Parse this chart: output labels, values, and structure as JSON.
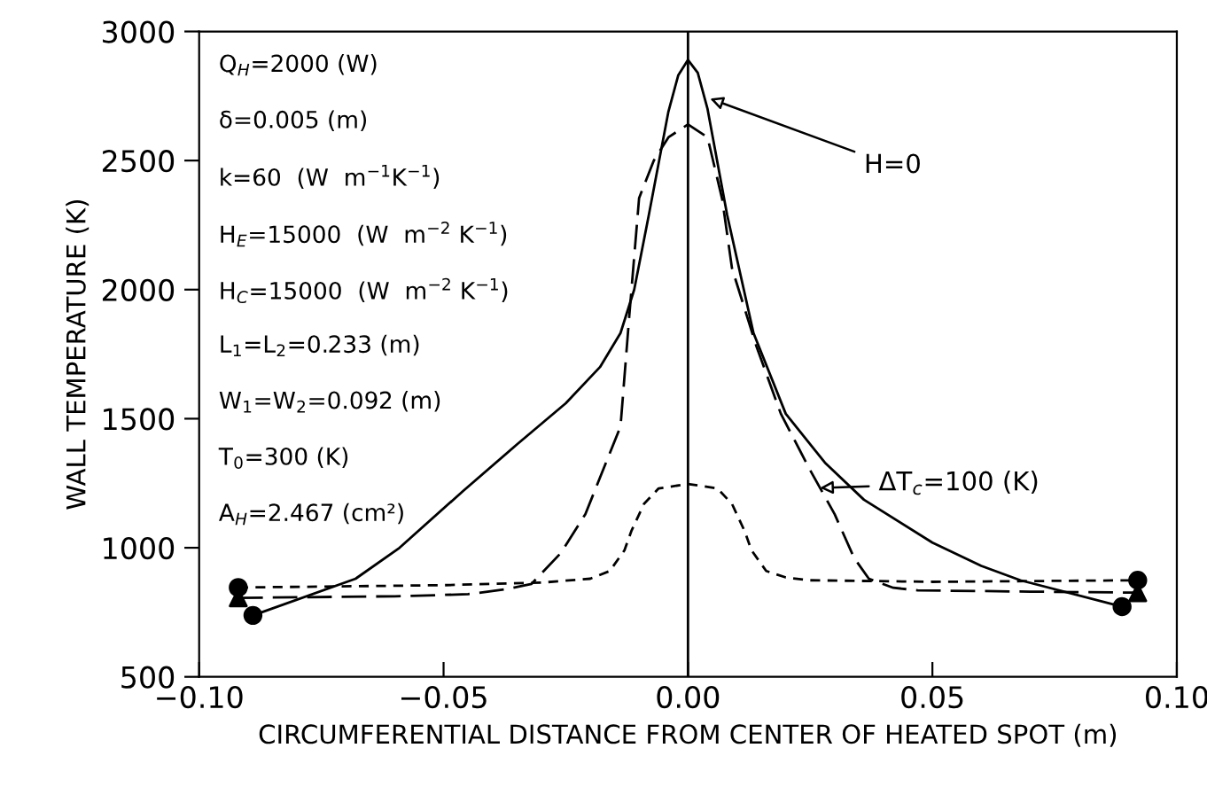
{
  "chart_data": {
    "type": "line",
    "xlabel": "CIRCUMFERENTIAL DISTANCE FROM CENTER OF HEATED SPOT (m)",
    "ylabel": "WALL TEMPERATURE (K)",
    "xlim": [
      -0.1,
      0.1
    ],
    "ylim": [
      500,
      3000
    ],
    "xticks": [
      {
        "value": -0.1,
        "label": "−0.10"
      },
      {
        "value": -0.05,
        "label": "−0.05"
      },
      {
        "value": 0,
        "label": "0.00"
      },
      {
        "value": 0.05,
        "label": "0.05"
      },
      {
        "value": 0.1,
        "label": "0.10"
      }
    ],
    "yticks": [
      500,
      1000,
      1500,
      2000,
      2500,
      3000
    ],
    "grid": false,
    "legend": false,
    "ref_lines": [
      {
        "axis": "x",
        "value": 0,
        "label": null,
        "color": "#000000",
        "line_style": "solid"
      }
    ],
    "series": [
      {
        "color": "#000000",
        "line_style": "solid",
        "x": [
          -0.089,
          -0.068,
          -0.059,
          -0.046,
          -0.035,
          -0.025,
          -0.018,
          -0.0138,
          -0.011,
          -0.008,
          -0.004,
          -0.002,
          0,
          0.002,
          0.004,
          0.008,
          0.0134,
          0.02,
          0.028,
          0.036,
          0.05,
          0.06,
          0.068,
          0.0888
        ],
        "values": [
          738,
          880,
          1000,
          1220,
          1400,
          1560,
          1700,
          1832,
          2000,
          2290,
          2690,
          2830,
          2890,
          2840,
          2700,
          2290,
          1832,
          1519,
          1330,
          1186,
          1020,
          930,
          874,
          772
        ]
      },
      {
        "color": "#000000",
        "line_style": "dashed",
        "x": [
          -0.092,
          -0.06,
          -0.045,
          -0.037,
          -0.032,
          -0.026,
          -0.021,
          -0.0138,
          -0.012,
          -0.01,
          -0.007,
          -0.004,
          0,
          0.004,
          0.007,
          0.009,
          0.014,
          0.019,
          0.025,
          0.03,
          0.034,
          0.037,
          0.042,
          0.047,
          0.07,
          0.092
        ],
        "values": [
          806,
          812,
          820,
          840,
          860,
          980,
          1130,
          1470,
          1900,
          2355,
          2500,
          2590,
          2640,
          2590,
          2350,
          2083,
          1780,
          1519,
          1300,
          1130,
          960,
          880,
          845,
          835,
          830,
          826
        ]
      },
      {
        "color": "#000000",
        "line_style": "dotted",
        "x": [
          -0.092,
          -0.05,
          -0.03,
          -0.02,
          -0.016,
          -0.013,
          -0.0116,
          -0.009,
          -0.006,
          0,
          0.006,
          0.009,
          0.0116,
          0.013,
          0.016,
          0.02,
          0.025,
          0.05,
          0.092
        ],
        "values": [
          846,
          855,
          865,
          880,
          910,
          990,
          1064,
          1170,
          1230,
          1247,
          1230,
          1170,
          1064,
          990,
          910,
          885,
          874,
          868,
          874
        ]
      },
      {
        "type": "scatter",
        "color": "#000000",
        "marker": "circle",
        "x": [
          -0.089,
          0.0888
        ],
        "values": [
          738,
          772
        ]
      },
      {
        "type": "scatter",
        "color": "#000000",
        "marker": "triangle",
        "x": [
          -0.092,
          0.092
        ],
        "values": [
          806,
          826
        ]
      },
      {
        "type": "scatter",
        "color": "#000000",
        "marker": "circle",
        "x": [
          -0.092,
          0.092
        ],
        "values": [
          846,
          874
        ]
      }
    ],
    "annotations": [
      "Q$_{H}$=2000 (W)",
      "δ=0.005 (m)",
      "k=60  (W  m$^{−1}$K$^{−1}$)",
      "H$_{E}$=15000  (W  m$^{−2}$ K$^{−1}$)",
      "H$_{C}$=15000  (W  m$^{−2}$ K$^{−1}$)",
      "L$_{1}$=L$_{2}$=0.233 (m)",
      "W$_{1}$=W$_{2}$=0.092 (m)",
      "T$_{0}$=300 (K)",
      "A$_{H}$=2.467 (cm²)",
      {
        "text": "H=0",
        "x": 0.0045,
        "y": 2740
      },
      {
        "text": "ΔT$_{c}$=100 (K)",
        "x": 0.027,
        "y": 1232
      }
    ]
  }
}
